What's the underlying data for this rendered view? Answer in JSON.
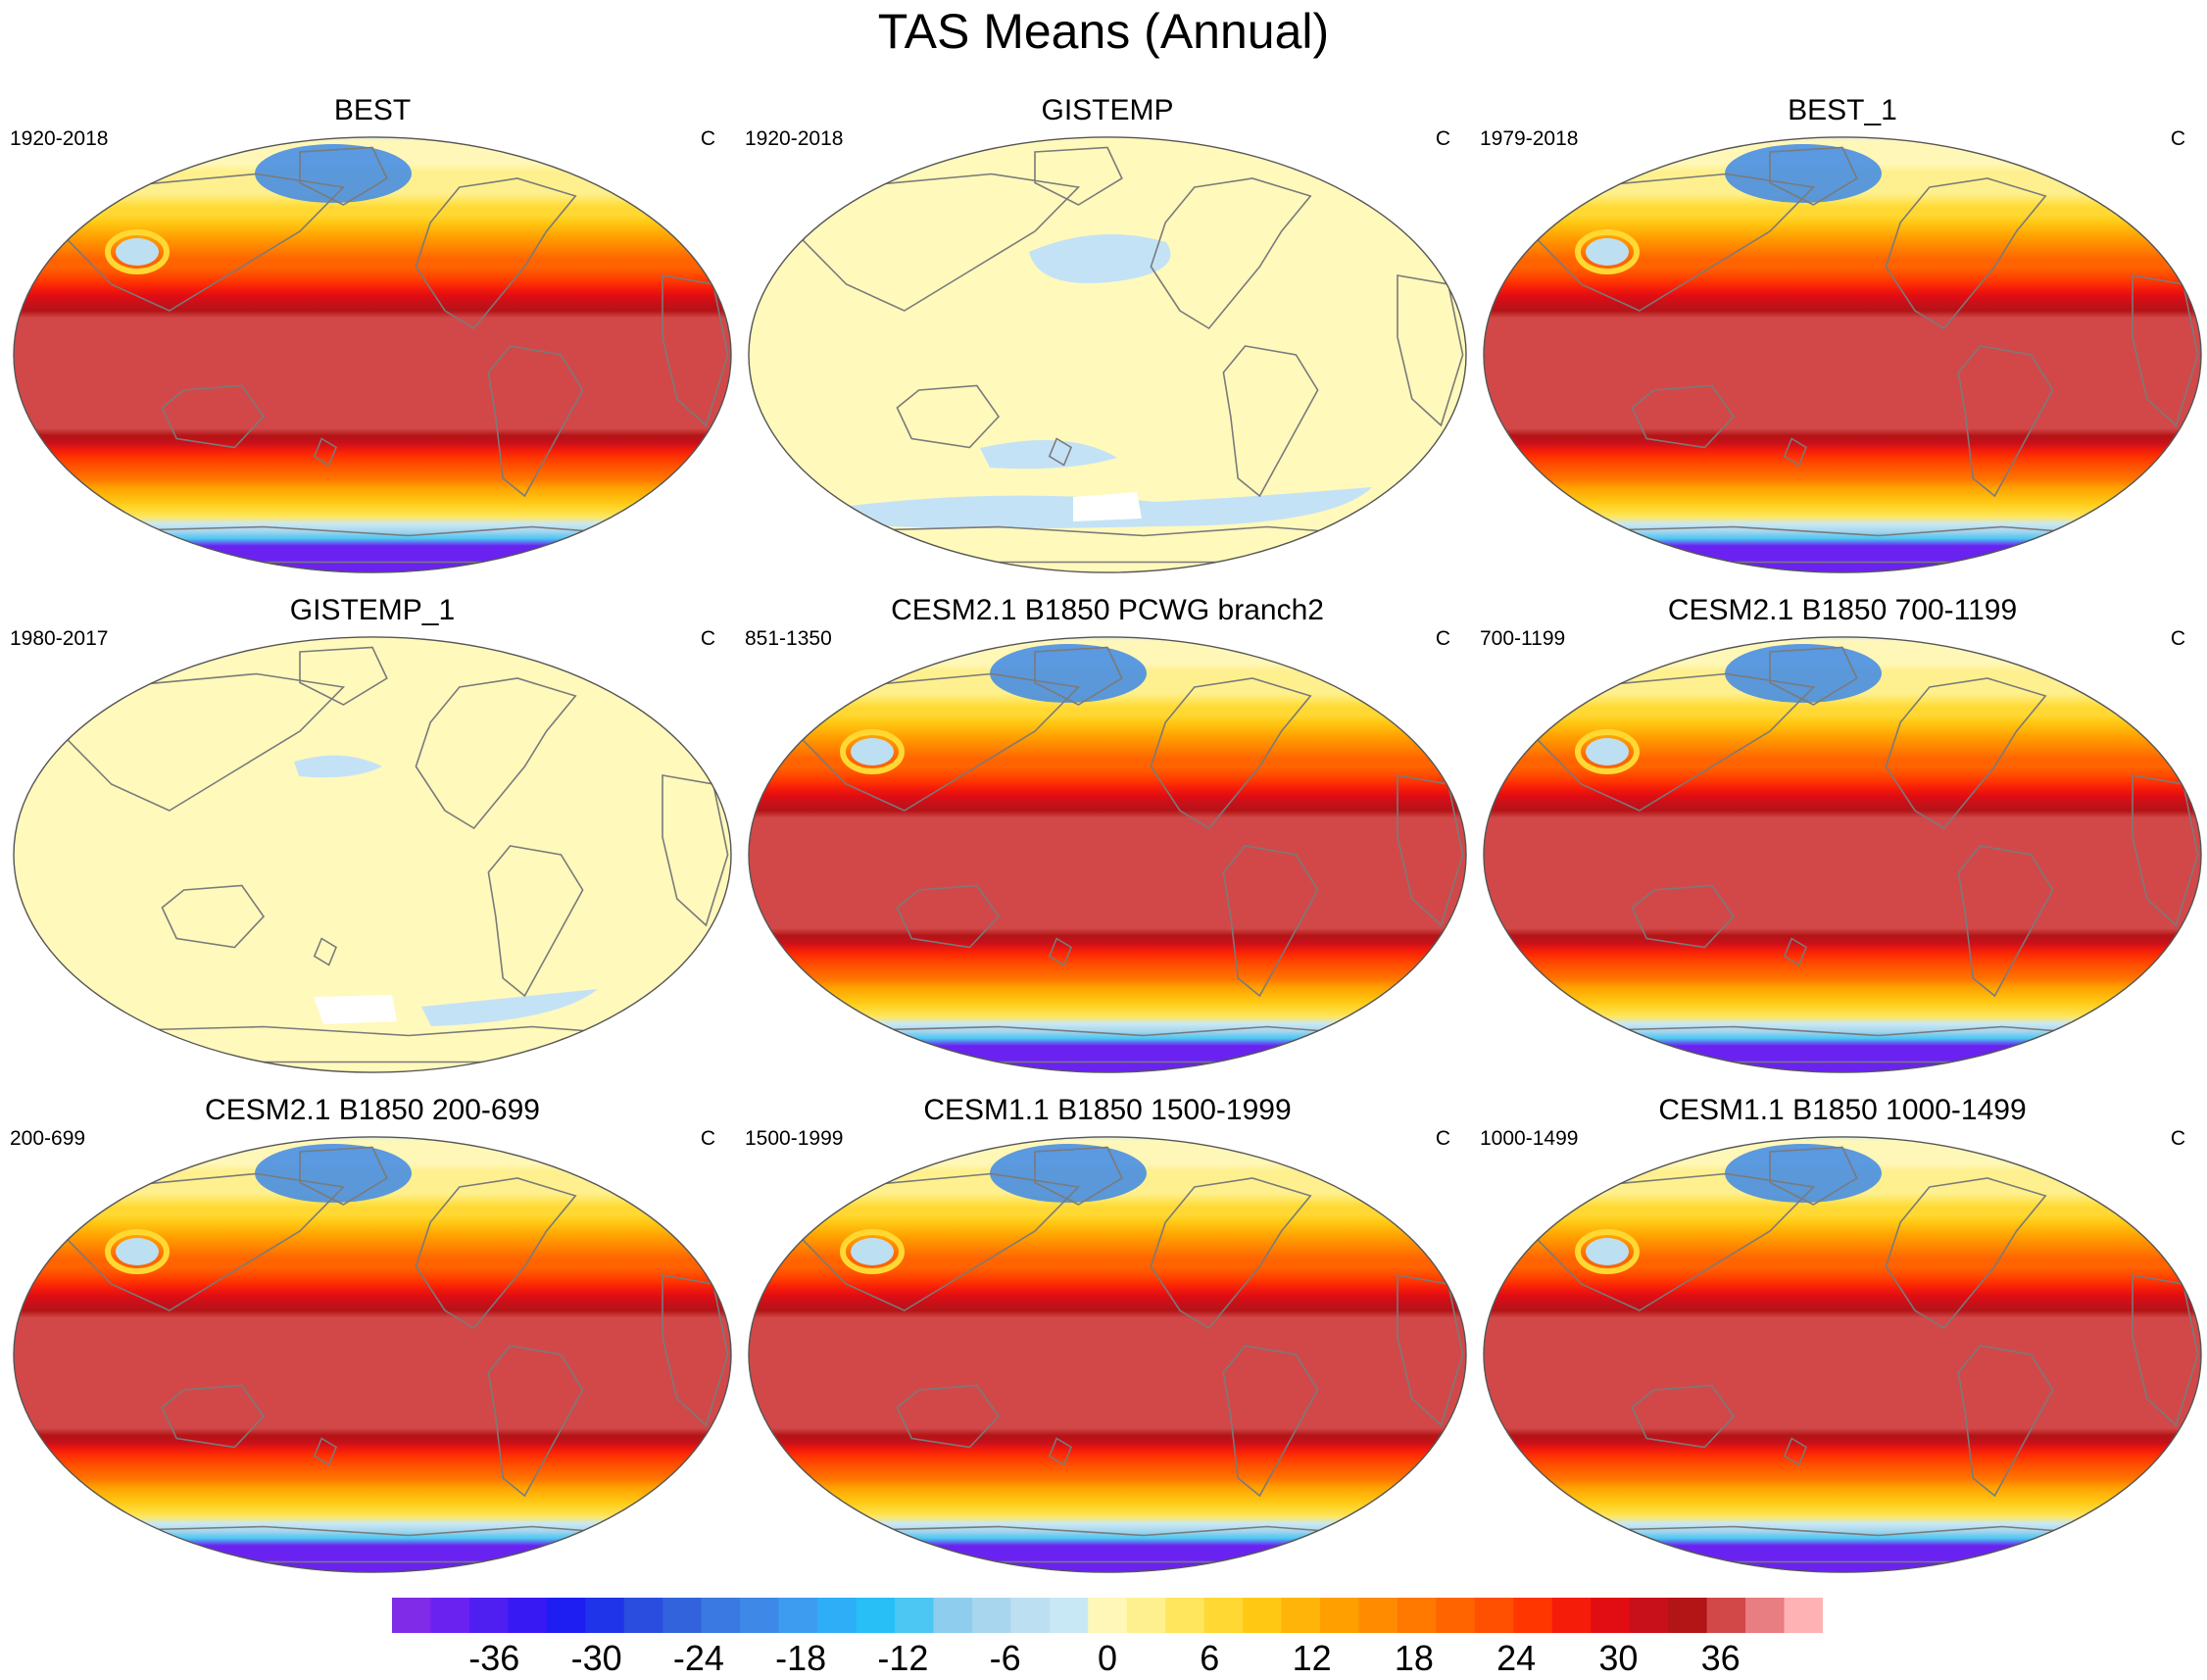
{
  "title": "TAS Means (Annual)",
  "panels": [
    {
      "title": "BEST",
      "period": "1920-2018",
      "units": "C",
      "style": "full"
    },
    {
      "title": "GISTEMP",
      "period": "1920-2018",
      "units": "C",
      "style": "flat"
    },
    {
      "title": "BEST_1",
      "period": "1979-2018",
      "units": "C",
      "style": "full"
    },
    {
      "title": "GISTEMP_1",
      "period": "1980-2017",
      "units": "C",
      "style": "flat"
    },
    {
      "title": "CESM2.1 B1850 PCWG branch2",
      "period": "851-1350",
      "units": "C",
      "style": "full"
    },
    {
      "title": "CESM2.1 B1850 700-1199",
      "period": "700-1199",
      "units": "C",
      "style": "full"
    },
    {
      "title": "CESM2.1 B1850 200-699",
      "period": "200-699",
      "units": "C",
      "style": "full"
    },
    {
      "title": "CESM1.1 B1850 1500-1999",
      "period": "1500-1999",
      "units": "C",
      "style": "full"
    },
    {
      "title": "CESM1.1 B1850 1000-1499",
      "period": "1000-1499",
      "units": "C",
      "style": "full"
    }
  ],
  "colorbar": {
    "tick_labels": [
      "-36",
      "-30",
      "-24",
      "-18",
      "-12",
      "-6",
      "0",
      "6",
      "12",
      "18",
      "24",
      "30",
      "36"
    ],
    "tick_values": [
      -36,
      -30,
      -24,
      -18,
      -12,
      -6,
      0,
      6,
      12,
      18,
      24,
      30,
      36
    ],
    "min": -42,
    "max": 42,
    "step": 2,
    "colors": [
      "#7f2be8",
      "#6a22f0",
      "#4f1ff2",
      "#3719f3",
      "#1e1df2",
      "#1f34e8",
      "#2a4ddf",
      "#3263dd",
      "#3a78e2",
      "#3e88e8",
      "#3e9cf0",
      "#2eaef6",
      "#28bef6",
      "#4cc6f2",
      "#8ecdee",
      "#a7d6ee",
      "#bcdff2",
      "#c9e8f5",
      "#fff7b8",
      "#fff08f",
      "#ffe65d",
      "#ffd833",
      "#ffc813",
      "#ffb40a",
      "#ff9f00",
      "#ff8c00",
      "#ff7800",
      "#ff6400",
      "#ff4f00",
      "#ff3600",
      "#f51c0a",
      "#e10d12",
      "#c8101a",
      "#b31416",
      "#d24848",
      "#e87e82",
      "#ffb2b4"
    ]
  },
  "map_colors": {
    "flat_fill": "#fff9bc",
    "flat_anomaly": "#c4e2f6",
    "flat_missing": "#ffffff",
    "coastline": "#7a7a7a"
  }
}
